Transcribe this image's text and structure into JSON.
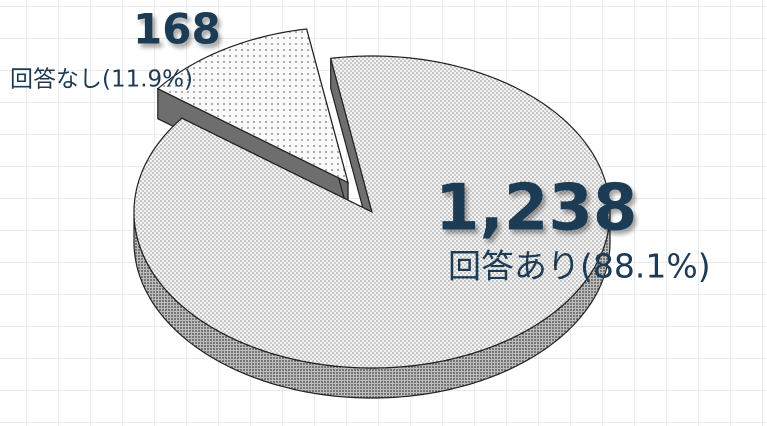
{
  "chart_data": {
    "type": "pie",
    "categories": [
      "回答あり(88.1%)",
      "回答なし(11.9%)"
    ],
    "values": [
      1238,
      168
    ],
    "value_labels": [
      "1,238",
      "168"
    ]
  }
}
